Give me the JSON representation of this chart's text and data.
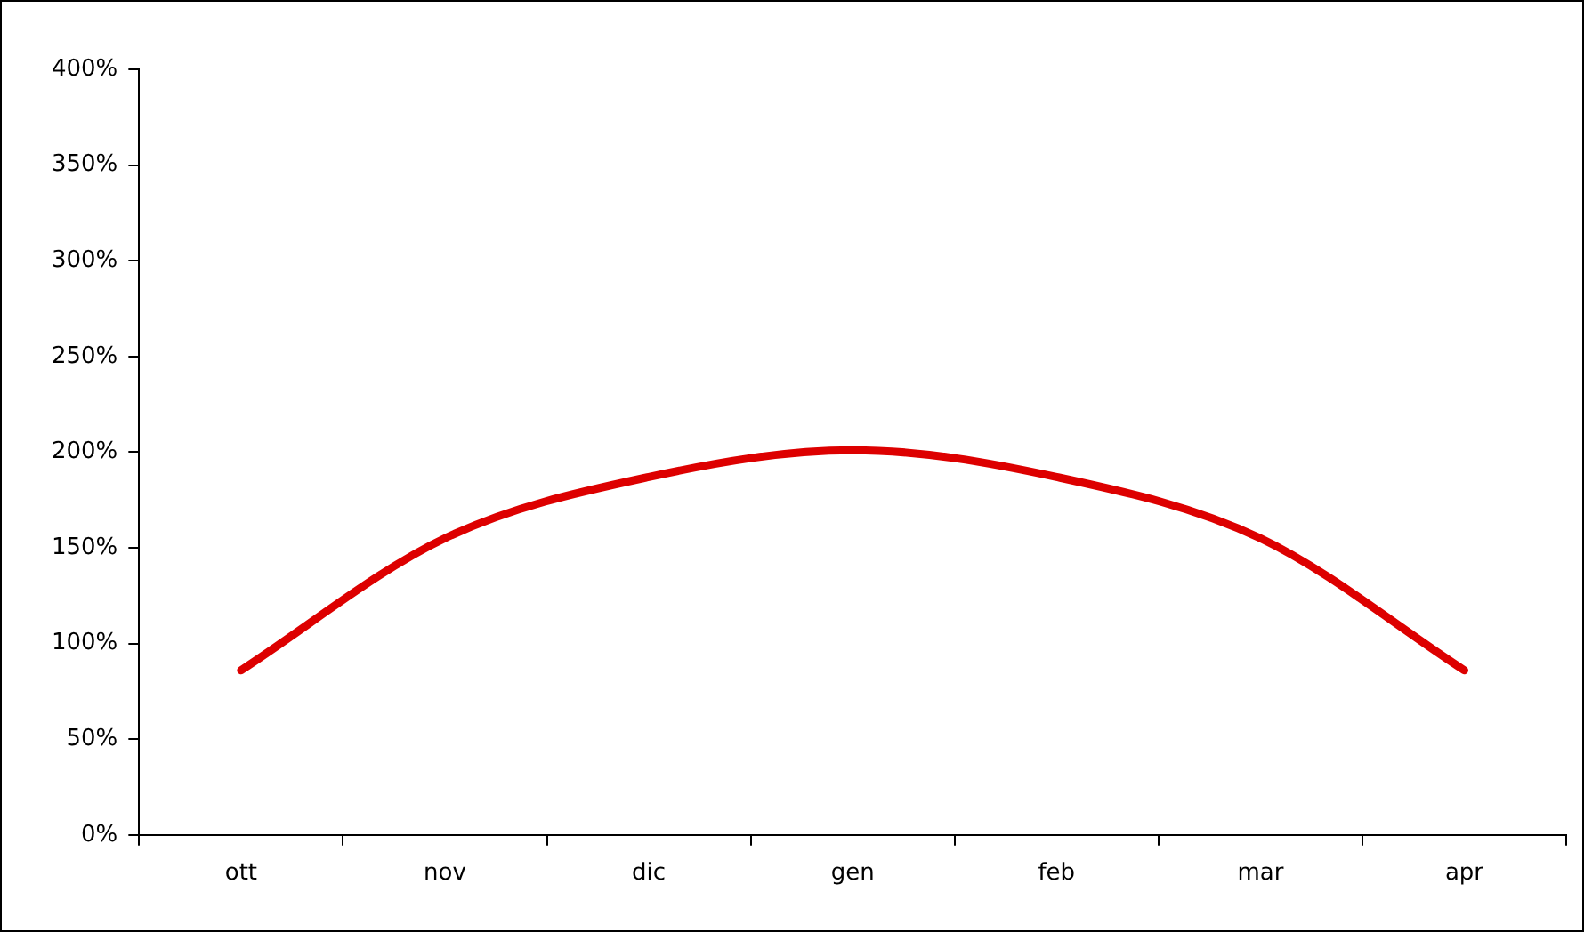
{
  "chart_data": {
    "type": "line",
    "categories": [
      "ott",
      "nov",
      "dic",
      "gen",
      "feb",
      "mar",
      "apr"
    ],
    "series": [
      {
        "color": "#dd0000",
        "values": [
          86,
          155,
          187,
          201,
          187,
          155,
          86
        ]
      }
    ],
    "ylim": [
      0,
      400
    ],
    "yticks": [
      {
        "value": 0,
        "label": "0%"
      },
      {
        "value": 50,
        "label": "50%"
      },
      {
        "value": 100,
        "label": "100%"
      },
      {
        "value": 150,
        "label": "150%"
      },
      {
        "value": 200,
        "label": "200%"
      },
      {
        "value": 250,
        "label": "250%"
      },
      {
        "value": 300,
        "label": "300%"
      },
      {
        "value": 350,
        "label": "350%"
      },
      {
        "value": 400,
        "label": "400%"
      }
    ],
    "grid": false,
    "legend": false,
    "marker": "none",
    "line_style": "solid"
  }
}
